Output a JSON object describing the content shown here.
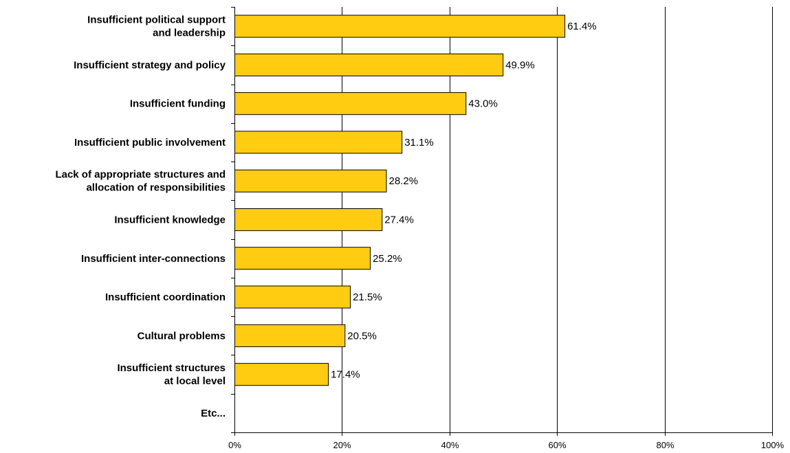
{
  "chart_data": {
    "type": "bar",
    "orientation": "horizontal",
    "title": "",
    "xlabel": "",
    "ylabel": "",
    "xlim": [
      0,
      100
    ],
    "x_tick_values": [
      0,
      20,
      40,
      60,
      80,
      100
    ],
    "x_tick_labels": [
      "0%",
      "20%",
      "40%",
      "60%",
      "80%",
      "100%"
    ],
    "grid": "vertical major gridlines",
    "legend": "none",
    "bar_color": "#FFCC11",
    "bar_edge_color": "#000000",
    "categories": [
      [
        "Insufficient political support",
        "and leadership"
      ],
      [
        "Insufficient strategy and policy"
      ],
      [
        "Insufficient funding"
      ],
      [
        "Insufficient public involvement"
      ],
      [
        "Lack of appropriate structures and",
        "allocation of responsibilities"
      ],
      [
        "Insufficient  knowledge"
      ],
      [
        "Insufficient inter-connections"
      ],
      [
        "Insufficient coordination"
      ],
      [
        "Cultural problems"
      ],
      [
        "Insufficient structures",
        "at local level"
      ],
      [
        "Etc..."
      ]
    ],
    "values": [
      61.4,
      49.9,
      43.0,
      31.1,
      28.2,
      27.4,
      25.2,
      21.5,
      20.5,
      17.4,
      null
    ],
    "data_labels": [
      "61.4%",
      "49.9%",
      "43.0%",
      "31.1%",
      "28.2%",
      "27.4%",
      "25.2%",
      "21.5%",
      "20.5%",
      "17.4%",
      ""
    ]
  }
}
